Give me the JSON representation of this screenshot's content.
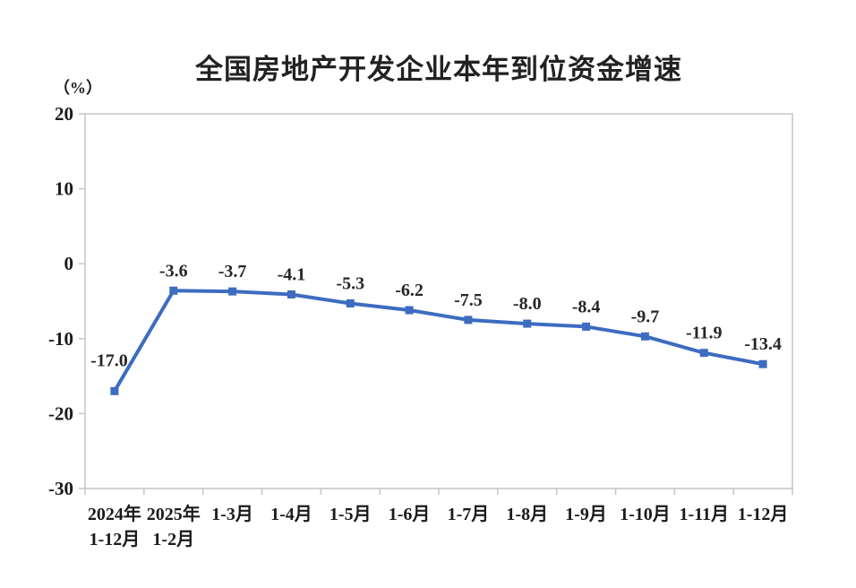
{
  "page": {
    "background": "#ffffff"
  },
  "chart_data": {
    "type": "line",
    "title": "全国房地产开发企业本年到位资金增速",
    "unit_label": "（%）",
    "categories": [
      "2024年\n1-12月",
      "2025年\n1-2月",
      "1-3月",
      "1-4月",
      "1-5月",
      "1-6月",
      "1-7月",
      "1-8月",
      "1-9月",
      "1-10月",
      "1-11月",
      "1-12月"
    ],
    "values": [
      -17.0,
      -3.6,
      -3.7,
      -4.1,
      -5.3,
      -6.2,
      -7.5,
      -8.0,
      -8.4,
      -9.7,
      -11.9,
      -13.4
    ],
    "data_labels": [
      "-17.0",
      "-3.6",
      "-3.7",
      "-4.1",
      "-5.3",
      "-6.2",
      "-7.5",
      "-8.0",
      "-8.4",
      "-9.7",
      "-11.9",
      "-13.4"
    ],
    "yticks": [
      20,
      10,
      0,
      -10,
      -20,
      -30
    ],
    "ylim": [
      -30,
      20
    ],
    "xlabel": "",
    "ylabel": "（%）",
    "grid": false,
    "legend": "none",
    "marker": "square",
    "line_color": "#3d6cc0",
    "axis_color": "#c6c6c6",
    "text_color": "#1a1a1a"
  }
}
